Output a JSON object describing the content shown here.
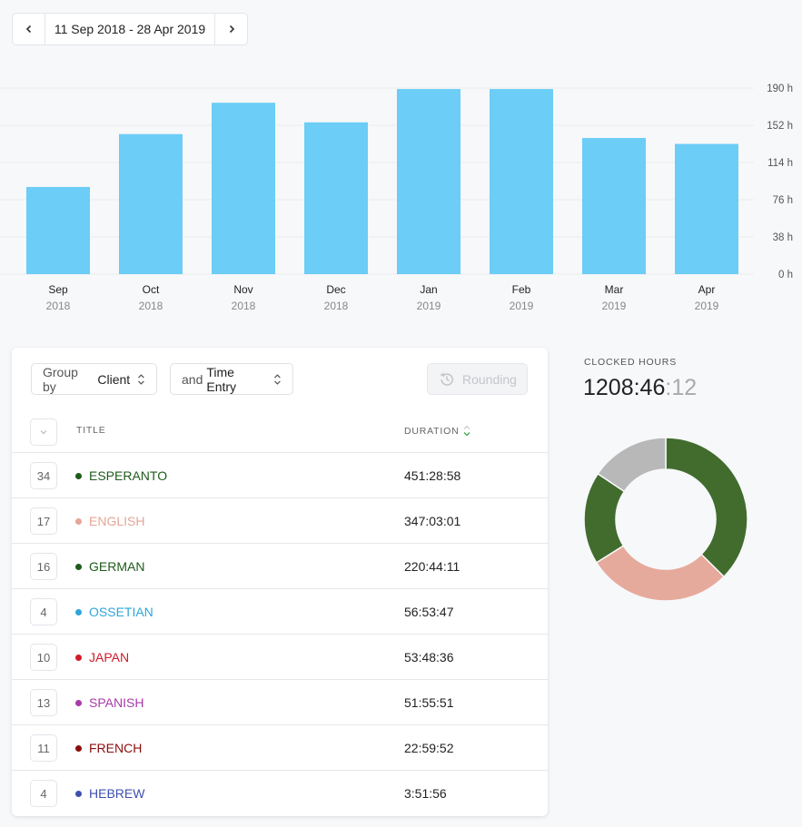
{
  "date_range": {
    "label": "11 Sep 2018 - 28 Apr 2019"
  },
  "chart_data": {
    "type": "bar",
    "categories": [
      "Sep",
      "Oct",
      "Nov",
      "Dec",
      "Jan",
      "Feb",
      "Mar",
      "Apr"
    ],
    "years": [
      "2018",
      "2018",
      "2018",
      "2018",
      "2019",
      "2019",
      "2019",
      "2019"
    ],
    "values": [
      89,
      143,
      175,
      155,
      189,
      189,
      139,
      133
    ],
    "y_ticks": [
      "0 h",
      "38 h",
      "76 h",
      "114 h",
      "152 h",
      "190 h"
    ],
    "ylim": [
      0,
      190
    ],
    "unit": "h",
    "grid": true,
    "bar_color": "#6ccdf6"
  },
  "controls": {
    "group_prefix": "Group by",
    "group_value": "Client",
    "entry_prefix": "and",
    "entry_value": "Time Entry",
    "rounding_label": "Rounding"
  },
  "table": {
    "col_title": "TITLE",
    "col_duration": "DURATION",
    "rows": [
      {
        "count": "34",
        "name": "ESPERANTO",
        "duration": "451:28:58",
        "color": "#1e5b1a"
      },
      {
        "count": "17",
        "name": "ENGLISH",
        "duration": "347:03:01",
        "color": "#e5a597"
      },
      {
        "count": "16",
        "name": "GERMAN",
        "duration": "220:44:11",
        "color": "#1e5b1a"
      },
      {
        "count": "4",
        "name": "OSSETIAN",
        "duration": "56:53:47",
        "color": "#2ea5d9"
      },
      {
        "count": "10",
        "name": "JAPAN",
        "duration": "53:48:36",
        "color": "#d11a2a"
      },
      {
        "count": "13",
        "name": "SPANISH",
        "duration": "51:55:51",
        "color": "#a63ba8"
      },
      {
        "count": "11",
        "name": "FRENCH",
        "duration": "22:59:52",
        "color": "#8b0c0c"
      },
      {
        "count": "4",
        "name": "HEBREW",
        "duration": "3:51:56",
        "color": "#3f4fb0"
      }
    ]
  },
  "summary": {
    "label": "CLOCKED HOURS",
    "value_main": "1208:46",
    "value_sec": ":12"
  },
  "donut": {
    "segments": [
      {
        "fraction": 0.374,
        "color": "#416c2e"
      },
      {
        "fraction": 0.287,
        "color": "#e6aa9c"
      },
      {
        "fraction": 0.183,
        "color": "#416c2e"
      },
      {
        "fraction": 0.156,
        "color": "#b8b8b8"
      }
    ]
  }
}
